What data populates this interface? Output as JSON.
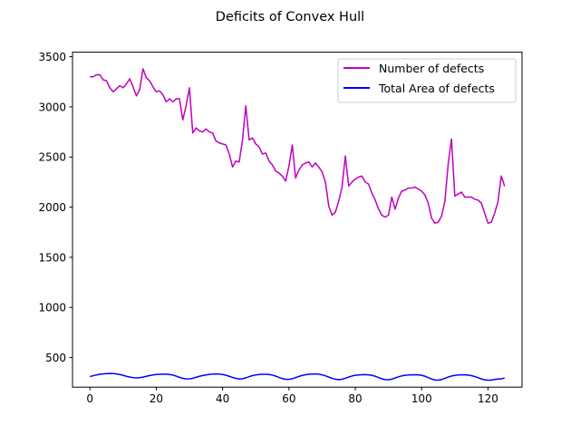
{
  "chart_data": {
    "type": "line",
    "title": "Deficits of Convex Hull",
    "xlabel": "",
    "ylabel": "",
    "xlim": [
      -5.25,
      130.25
    ],
    "ylim": [
      205,
      3545
    ],
    "x_ticks": [
      0,
      20,
      40,
      60,
      80,
      100,
      120
    ],
    "y_ticks": [
      500,
      1000,
      1500,
      2000,
      2500,
      3000,
      3500
    ],
    "grid": false,
    "legend_position": "upper right",
    "series": [
      {
        "name": "Number of defects",
        "color": "#bf00bf",
        "x": [
          0,
          1,
          2,
          3,
          4,
          5,
          6,
          7,
          8,
          9,
          10,
          11,
          12,
          13,
          14,
          15,
          16,
          17,
          18,
          19,
          20,
          21,
          22,
          23,
          24,
          25,
          26,
          27,
          28,
          29,
          30,
          31,
          32,
          33,
          34,
          35,
          36,
          37,
          38,
          39,
          40,
          41,
          42,
          43,
          44,
          45,
          46,
          47,
          48,
          49,
          50,
          51,
          52,
          53,
          54,
          55,
          56,
          57,
          58,
          59,
          60,
          61,
          62,
          63,
          64,
          65,
          66,
          67,
          68,
          69,
          70,
          71,
          72,
          73,
          74,
          75,
          76,
          77,
          78,
          79,
          80,
          81,
          82,
          83,
          84,
          85,
          86,
          87,
          88,
          89,
          90,
          91,
          92,
          93,
          94,
          95,
          96,
          97,
          98,
          99,
          100,
          101,
          102,
          103,
          104,
          105,
          106,
          107,
          108,
          109,
          110,
          111,
          112,
          113,
          114,
          115,
          116,
          117,
          118,
          119,
          120,
          121,
          122,
          123,
          124,
          125
        ],
        "values": [
          3300,
          3300,
          3320,
          3320,
          3270,
          3260,
          3190,
          3150,
          3180,
          3210,
          3190,
          3230,
          3280,
          3200,
          3110,
          3170,
          3380,
          3290,
          3260,
          3200,
          3150,
          3160,
          3120,
          3050,
          3080,
          3050,
          3080,
          3080,
          2870,
          3010,
          3190,
          2740,
          2790,
          2760,
          2750,
          2780,
          2750,
          2740,
          2660,
          2640,
          2630,
          2620,
          2530,
          2400,
          2460,
          2450,
          2670,
          3010,
          2670,
          2690,
          2630,
          2600,
          2530,
          2540,
          2460,
          2420,
          2360,
          2340,
          2310,
          2260,
          2410,
          2620,
          2290,
          2370,
          2420,
          2440,
          2450,
          2400,
          2440,
          2400,
          2350,
          2250,
          2010,
          1920,
          1950,
          2060,
          2200,
          2510,
          2210,
          2250,
          2280,
          2300,
          2310,
          2250,
          2230,
          2140,
          2070,
          1980,
          1920,
          1900,
          1920,
          2100,
          1980,
          2090,
          2160,
          2170,
          2190,
          2190,
          2200,
          2180,
          2160,
          2120,
          2040,
          1890,
          1840,
          1850,
          1910,
          2060,
          2430,
          2680,
          2110,
          2130,
          2150,
          2100,
          2100,
          2100,
          2080,
          2070,
          2040,
          1940,
          1840,
          1850,
          1940,
          2050,
          2310,
          2210
        ]
      },
      {
        "name": "Total Area of defects",
        "color": "#0000ff",
        "x": [
          0,
          1,
          2,
          3,
          4,
          5,
          6,
          7,
          8,
          9,
          10,
          11,
          12,
          13,
          14,
          15,
          16,
          17,
          18,
          19,
          20,
          21,
          22,
          23,
          24,
          25,
          26,
          27,
          28,
          29,
          30,
          31,
          32,
          33,
          34,
          35,
          36,
          37,
          38,
          39,
          40,
          41,
          42,
          43,
          44,
          45,
          46,
          47,
          48,
          49,
          50,
          51,
          52,
          53,
          54,
          55,
          56,
          57,
          58,
          59,
          60,
          61,
          62,
          63,
          64,
          65,
          66,
          67,
          68,
          69,
          70,
          71,
          72,
          73,
          74,
          75,
          76,
          77,
          78,
          79,
          80,
          81,
          82,
          83,
          84,
          85,
          86,
          87,
          88,
          89,
          90,
          91,
          92,
          93,
          94,
          95,
          96,
          97,
          98,
          99,
          100,
          101,
          102,
          103,
          104,
          105,
          106,
          107,
          108,
          109,
          110,
          111,
          112,
          113,
          114,
          115,
          116,
          117,
          118,
          119,
          120,
          121,
          122,
          123,
          124,
          125
        ],
        "values": [
          310,
          319,
          327,
          333,
          337,
          340,
          341,
          340,
          337,
          331,
          323,
          313,
          306,
          300,
          297,
          299,
          305,
          313,
          321,
          327,
          331,
          333,
          334,
          334,
          331,
          325,
          315,
          303,
          293,
          287,
          288,
          293,
          303,
          313,
          321,
          327,
          332,
          335,
          336,
          335,
          331,
          324,
          313,
          302,
          293,
          287,
          289,
          298,
          310,
          320,
          327,
          331,
          333,
          333,
          331,
          325,
          315,
          302,
          290,
          284,
          283,
          289,
          300,
          312,
          322,
          329,
          333,
          335,
          336,
          334,
          328,
          318,
          305,
          293,
          284,
          280,
          284,
          293,
          306,
          316,
          323,
          327,
          329,
          330,
          328,
          323,
          314,
          301,
          288,
          280,
          279,
          285,
          296,
          308,
          317,
          323,
          326,
          328,
          329,
          328,
          323,
          314,
          300,
          286,
          277,
          275,
          281,
          293,
          306,
          316,
          322,
          326,
          328,
          328,
          325,
          320,
          311,
          299,
          287,
          278,
          275,
          276,
          281,
          286,
          288,
          296
        ]
      }
    ]
  }
}
